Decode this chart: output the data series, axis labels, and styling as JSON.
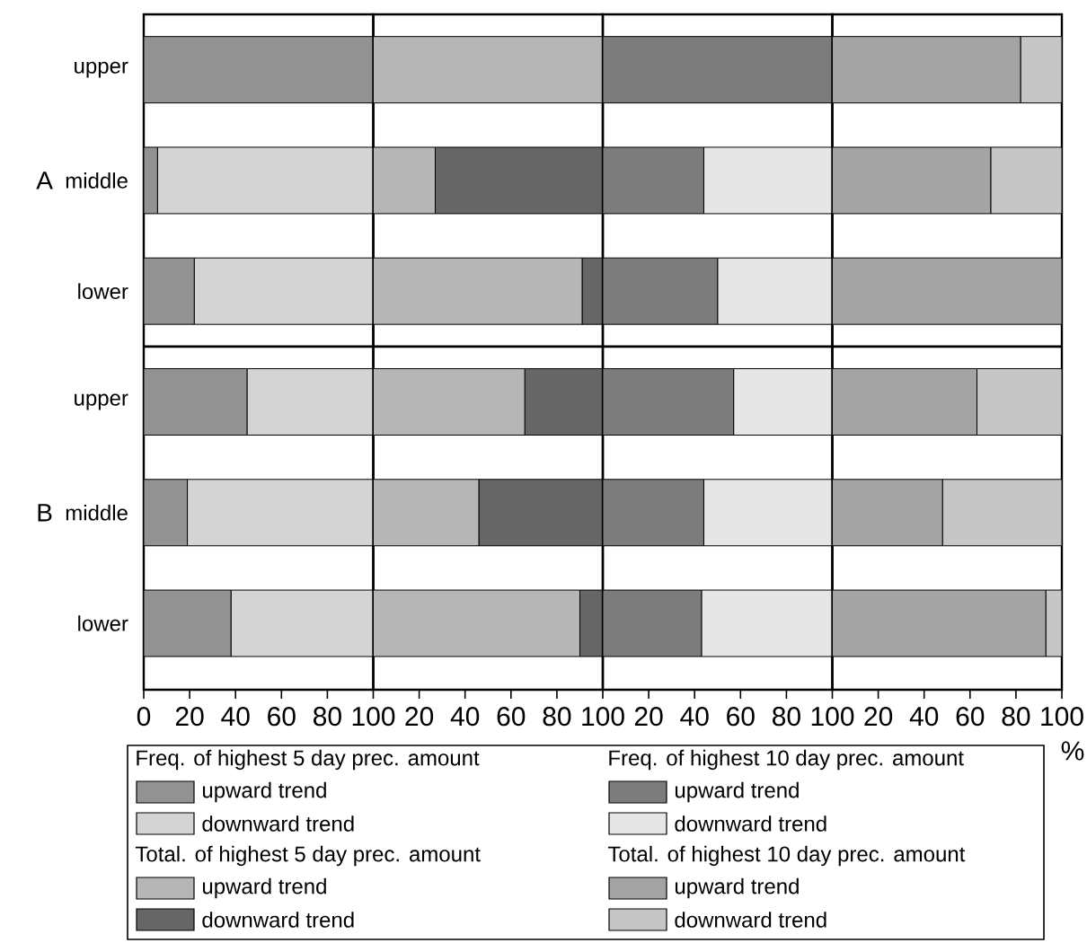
{
  "chart_data": [
    {
      "type": "bar",
      "orientation": "horizontal",
      "stacked": true,
      "legend": "bottom",
      "legend_title": "Freq. of highest 5 day prec. amount",
      "categories": [
        "upper",
        "middle",
        "lower",
        "upper",
        "middle",
        "lower"
      ],
      "annotations": [
        "A",
        "B"
      ],
      "xlim": [
        0,
        100
      ],
      "xticks": [
        0,
        20,
        40,
        60,
        80,
        100
      ],
      "series": [
        {
          "name": "upward trend",
          "color": "#929292",
          "values": [
            100,
            6,
            22,
            45,
            19,
            38
          ]
        },
        {
          "name": "downward trend",
          "color": "#d4d4d4",
          "values": [
            0,
            94,
            78,
            55,
            81,
            62
          ]
        }
      ]
    },
    {
      "type": "bar",
      "orientation": "horizontal",
      "stacked": true,
      "legend": "bottom",
      "legend_title": "Total. of highest 5 day prec. amount",
      "categories": [
        null,
        null,
        null,
        null,
        null,
        null
      ],
      "xlim": [
        0,
        100
      ],
      "xticks": [
        20,
        40,
        60,
        80,
        100
      ],
      "series": [
        {
          "name": "upward trend",
          "color": "#b6b6b6",
          "values": [
            100,
            27,
            91,
            66,
            46,
            90
          ]
        },
        {
          "name": "downward trend",
          "color": "#666666",
          "values": [
            0,
            73,
            9,
            34,
            54,
            10
          ]
        }
      ]
    },
    {
      "type": "bar",
      "orientation": "horizontal",
      "stacked": true,
      "legend": "bottom",
      "legend_title": "Freq. of highest 10 day prec. amount",
      "categories": [
        null,
        null,
        null,
        null,
        null,
        null
      ],
      "xlim": [
        0,
        100
      ],
      "xticks": [
        20,
        40,
        60,
        80,
        100
      ],
      "series": [
        {
          "name": "upward trend",
          "color": "#7c7c7c",
          "values": [
            100,
            44,
            50,
            57,
            44,
            43
          ]
        },
        {
          "name": "downward trend",
          "color": "#e6e6e6",
          "values": [
            0,
            56,
            50,
            43,
            56,
            57
          ]
        }
      ]
    },
    {
      "type": "bar",
      "orientation": "horizontal",
      "stacked": true,
      "legend": "bottom",
      "legend_title": "Total. of highest 10 day prec. amount",
      "xlabel": "%",
      "categories": [
        null,
        null,
        null,
        null,
        null,
        null
      ],
      "xlim": [
        0,
        100
      ],
      "xticks": [
        20,
        40,
        60,
        80,
        100
      ],
      "series": [
        {
          "name": "upward trend",
          "color": "#a4a4a4",
          "values": [
            82,
            69,
            100,
            63,
            48,
            93
          ]
        },
        {
          "name": "downward trend",
          "color": "#c6c6c6",
          "values": [
            18,
            31,
            0,
            37,
            52,
            7
          ]
        }
      ]
    }
  ]
}
